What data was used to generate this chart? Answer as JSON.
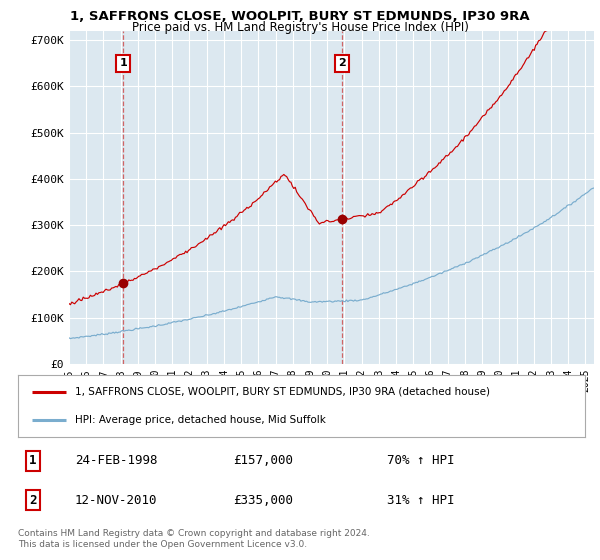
{
  "title_line1": "1, SAFFRONS CLOSE, WOOLPIT, BURY ST EDMUNDS, IP30 9RA",
  "title_line2": "Price paid vs. HM Land Registry's House Price Index (HPI)",
  "ylim": [
    0,
    720000
  ],
  "yticks": [
    0,
    100000,
    200000,
    300000,
    400000,
    500000,
    600000,
    700000
  ],
  "ytick_labels": [
    "£0",
    "£100K",
    "£200K",
    "£300K",
    "£400K",
    "£500K",
    "£600K",
    "£700K"
  ],
  "xlim_start": 1995.0,
  "xlim_end": 2025.5,
  "transaction1_date": "24-FEB-1998",
  "transaction1_price": "£157,000",
  "transaction1_hpi": "70% ↑ HPI",
  "transaction1_year": 1998.15,
  "transaction1_value": 157000,
  "transaction2_date": "12-NOV-2010",
  "transaction2_price": "£335,000",
  "transaction2_hpi": "31% ↑ HPI",
  "transaction2_year": 2010.87,
  "transaction2_value": 335000,
  "red_line_color": "#cc0000",
  "blue_line_color": "#7aadce",
  "marker_box_color": "#cc0000",
  "marker_dot_color": "#990000",
  "legend_red_label": "1, SAFFRONS CLOSE, WOOLPIT, BURY ST EDMUNDS, IP30 9RA (detached house)",
  "legend_blue_label": "HPI: Average price, detached house, Mid Suffolk",
  "footer_text": "Contains HM Land Registry data © Crown copyright and database right 2024.\nThis data is licensed under the Open Government Licence v3.0.",
  "background_color": "#ffffff",
  "plot_bg_color": "#dce8f0"
}
